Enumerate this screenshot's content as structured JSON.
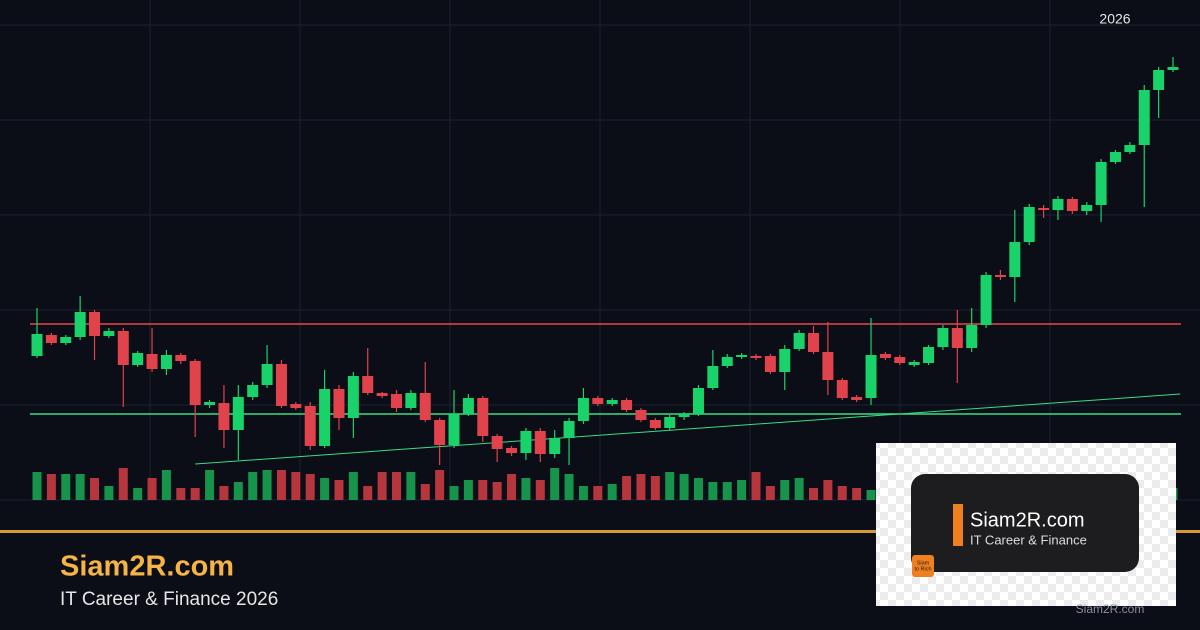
{
  "header_year": "2026",
  "chart_data": {
    "type": "candlestick",
    "open": [
      144,
      165,
      157,
      163,
      188,
      164,
      169,
      135,
      146,
      131,
      145,
      139,
      95,
      97,
      70,
      103,
      115,
      136,
      96,
      94,
      54,
      111,
      82,
      124,
      107,
      106,
      92,
      107,
      80,
      55,
      86,
      102,
      64,
      52,
      47,
      69,
      46,
      62,
      79,
      102,
      96,
      100,
      90,
      80,
      72,
      83,
      86,
      112,
      134,
      143,
      144,
      144,
      128,
      151,
      167,
      148,
      120,
      103,
      102,
      146,
      143,
      135,
      137,
      153,
      172,
      152,
      175,
      225,
      223,
      258,
      292,
      290,
      301,
      289,
      295,
      338,
      348,
      355,
      410,
      430
    ],
    "high": [
      192,
      167,
      165,
      204,
      190,
      172,
      172,
      149,
      172,
      150,
      147,
      141,
      100,
      115,
      115,
      118,
      155,
      140,
      98,
      98,
      130,
      115,
      128,
      152,
      108,
      110,
      110,
      138,
      82,
      110,
      106,
      104,
      66,
      54,
      72,
      72,
      70,
      82,
      112,
      104,
      102,
      102,
      92,
      82,
      85,
      88,
      115,
      150,
      146,
      147,
      146,
      146,
      155,
      170,
      174,
      178,
      122,
      105,
      182,
      148,
      145,
      140,
      155,
      175,
      190,
      192,
      228,
      230,
      290,
      296,
      295,
      304,
      303,
      298,
      341,
      350,
      358,
      415,
      433,
      443
    ],
    "low": [
      142,
      155,
      155,
      160,
      140,
      162,
      93,
      133,
      128,
      125,
      136,
      63,
      92,
      52,
      40,
      100,
      112,
      92,
      90,
      50,
      52,
      70,
      62,
      105,
      102,
      88,
      90,
      78,
      35,
      52,
      84,
      58,
      38,
      44,
      40,
      38,
      42,
      35,
      76,
      94,
      94,
      88,
      78,
      70,
      70,
      80,
      84,
      110,
      132,
      141,
      140,
      126,
      110,
      149,
      146,
      105,
      100,
      98,
      95,
      140,
      135,
      133,
      135,
      150,
      117,
      148,
      172,
      220,
      198,
      255,
      282,
      280,
      286,
      285,
      278,
      336,
      346,
      293,
      382,
      428
    ],
    "close": [
      166,
      157,
      163,
      188,
      164,
      169,
      135,
      147,
      131,
      145,
      139,
      95,
      98,
      70,
      103,
      115,
      136,
      94,
      92,
      54,
      111,
      82,
      124,
      107,
      104,
      92,
      107,
      80,
      55,
      86,
      102,
      64,
      51,
      47,
      69,
      46,
      62,
      79,
      102,
      96,
      100,
      90,
      80,
      72,
      83,
      86,
      112,
      134,
      143,
      145,
      142,
      128,
      151,
      167,
      148,
      120,
      102,
      100,
      145,
      142,
      137,
      138,
      153,
      172,
      152,
      175,
      225,
      223,
      258,
      293,
      290,
      301,
      289,
      295,
      338,
      348,
      355,
      410,
      430,
      433
    ],
    "volume": [
      28,
      26,
      26,
      26,
      22,
      14,
      32,
      12,
      22,
      30,
      12,
      12,
      30,
      14,
      18,
      28,
      30,
      30,
      28,
      26,
      22,
      20,
      28,
      14,
      28,
      28,
      28,
      16,
      30,
      14,
      20,
      20,
      18,
      26,
      22,
      20,
      32,
      26,
      14,
      14,
      16,
      24,
      26,
      24,
      28,
      26,
      22,
      18,
      18,
      20,
      28,
      14,
      20,
      22,
      12,
      20,
      14,
      12,
      10,
      16,
      24,
      20,
      14,
      12,
      14,
      18,
      26,
      16,
      20,
      26,
      12,
      14,
      18,
      26,
      22,
      18,
      26,
      26,
      26,
      12
    ],
    "ylim": [
      0,
      480
    ],
    "volume_lim": [
      0,
      100
    ],
    "up_color": "#19d36a",
    "down_color": "#e0434b",
    "volume_up_color": "#17934b",
    "volume_down_color": "#b6363d",
    "levels": [
      {
        "value": 176,
        "color": "#e5484d"
      },
      {
        "value": 86,
        "color": "#3ddc84"
      }
    ],
    "trendline": {
      "x": [
        11,
        79.5
      ],
      "y": [
        36,
        106
      ],
      "color": "#3ddc84"
    },
    "grid": true
  },
  "brand": {
    "title": "Siam2R.com",
    "subtitle": "IT Career & Finance 2026"
  },
  "logo": {
    "title": "Siam2R.com",
    "subtitle": "IT Career & Finance",
    "badge": [
      "Siam",
      "to Rich"
    ]
  },
  "watermark": "Siam2R.com"
}
